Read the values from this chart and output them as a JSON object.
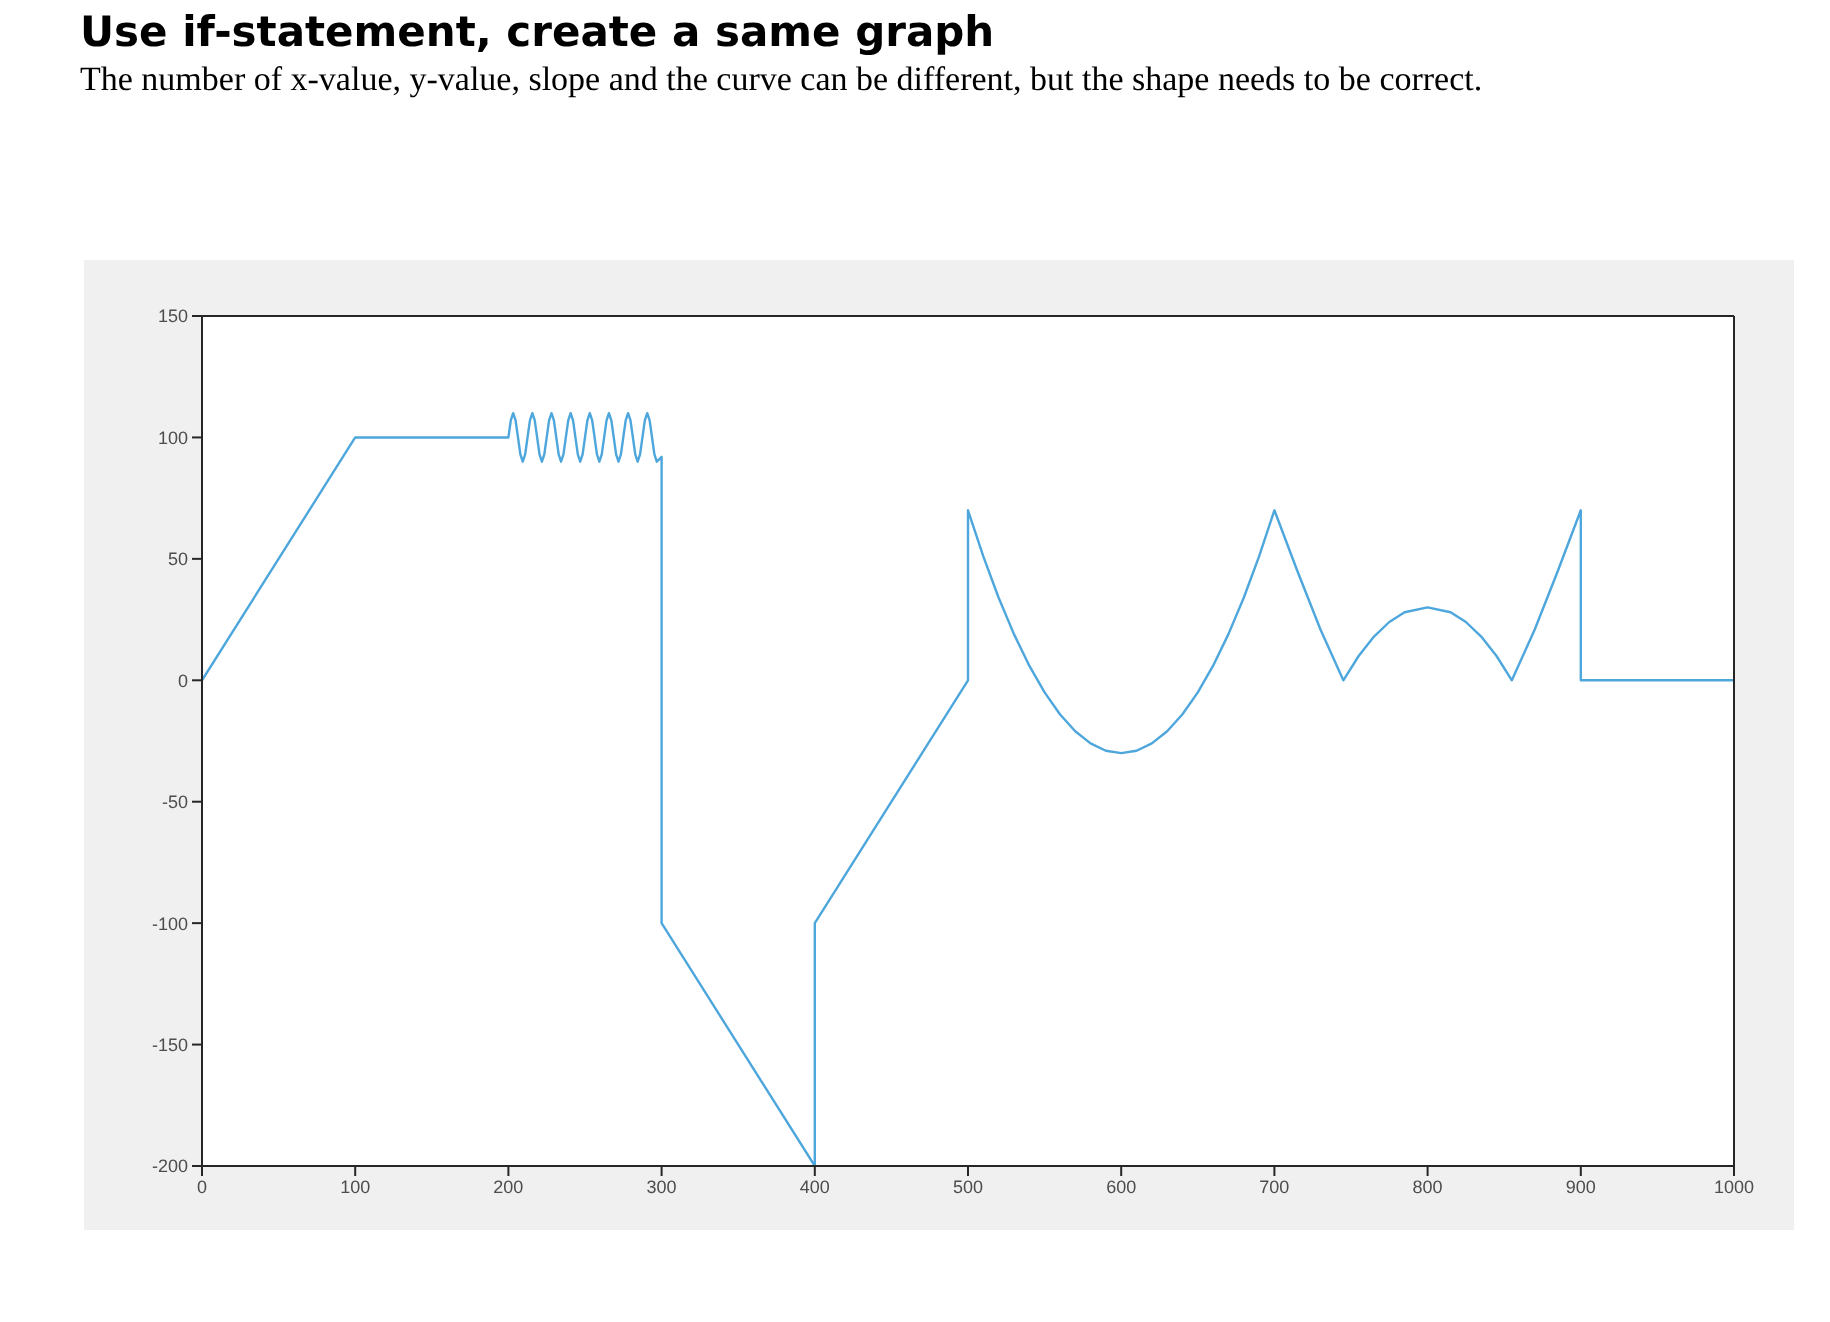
{
  "chart_data": {
    "type": "line",
    "title": "Use if-statement, create a same graph",
    "subtitle": "The number of x-value, y-value, slope and the curve can be different, but the shape needs to be correct.",
    "x": [
      0,
      100,
      200,
      201.5625,
      203.125,
      204.6875,
      206.25,
      207.8125,
      209.375,
      210.9375,
      212.5,
      214.0625,
      215.625,
      217.1875,
      218.75,
      220.3125,
      221.875,
      223.4375,
      225,
      226.5625,
      228.125,
      229.6875,
      231.25,
      232.8125,
      234.375,
      235.9375,
      237.5,
      239.0625,
      240.625,
      242.1875,
      243.75,
      245.3125,
      246.875,
      248.4375,
      250,
      251.5625,
      253.125,
      254.6875,
      256.25,
      257.8125,
      259.375,
      260.9375,
      262.5,
      264.0625,
      265.625,
      267.1875,
      268.75,
      270.3125,
      271.875,
      273.4375,
      275,
      276.5625,
      278.125,
      279.6875,
      281.25,
      282.8125,
      284.375,
      285.9375,
      287.5,
      289.0625,
      290.625,
      292.1875,
      293.75,
      295.3125,
      296.875,
      298.4375,
      300,
      300,
      400,
      400,
      500,
      500,
      510,
      520,
      530,
      540,
      550,
      560,
      570,
      580,
      590,
      600,
      610,
      620,
      630,
      640,
      650,
      660,
      670,
      680,
      690,
      700,
      715,
      730,
      745,
      755,
      765,
      775,
      785,
      800,
      815,
      825,
      835,
      845,
      855,
      870,
      885,
      900,
      900,
      1000
    ],
    "series": [
      {
        "color": "#4da6dc",
        "values": [
          0,
          100,
          100,
          107,
          110,
          107,
          100,
          93,
          90,
          93,
          100,
          107,
          110,
          107,
          100,
          93,
          90,
          93,
          100,
          107,
          110,
          107,
          100,
          93,
          90,
          93,
          100,
          107,
          110,
          107,
          100,
          93,
          90,
          93,
          100,
          107,
          110,
          107,
          100,
          93,
          90,
          93,
          100,
          107,
          110,
          107,
          100,
          93,
          90,
          93,
          100,
          107,
          110,
          107,
          100,
          93,
          90,
          93,
          100,
          107,
          110,
          107,
          100,
          93,
          90,
          91,
          92,
          -100,
          -200,
          -100,
          0,
          70,
          51,
          34,
          19,
          6,
          -5,
          -14,
          -21,
          -26,
          -29,
          -30,
          -29,
          -26,
          -21,
          -14,
          -5,
          6,
          19,
          34,
          51,
          70,
          45,
          21,
          0,
          10,
          18,
          24,
          28,
          30,
          28,
          24,
          18,
          10,
          0,
          21,
          45,
          70,
          0,
          0
        ]
      }
    ],
    "xlim": [
      0,
      1000
    ],
    "xticks": [
      0,
      100,
      200,
      300,
      400,
      500,
      600,
      700,
      800,
      900,
      1000
    ],
    "ylim": [
      -200,
      150
    ],
    "yticks": [
      -200,
      -150,
      -100,
      -50,
      0,
      50,
      100,
      150
    ],
    "marker": "none",
    "line_style": "solid"
  }
}
